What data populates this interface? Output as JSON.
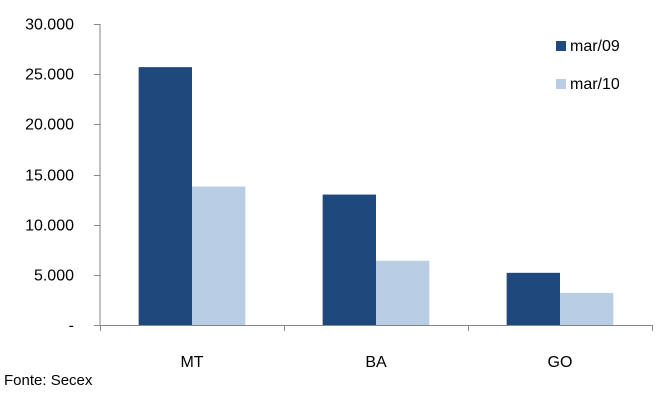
{
  "chart_data": {
    "type": "bar",
    "title": "",
    "xlabel": "",
    "ylabel": "",
    "categories": [
      "MT",
      "BA",
      "GO"
    ],
    "series": [
      {
        "name": "mar/09",
        "values": [
          25700,
          13000,
          5200
        ],
        "color": "#1f497d"
      },
      {
        "name": "mar/10",
        "values": [
          13800,
          6400,
          3200
        ],
        "color": "#b9cde5"
      }
    ],
    "ylim": [
      0,
      30000
    ],
    "yticks": [
      0,
      5000,
      10000,
      15000,
      20000,
      25000,
      30000
    ],
    "ytick_labels": [
      "-",
      "5.000",
      "10.000",
      "15.000",
      "20.000",
      "25.000",
      "30.000"
    ],
    "grid": false,
    "legend_position": "top-right"
  },
  "source_note": "Fonte: Secex"
}
